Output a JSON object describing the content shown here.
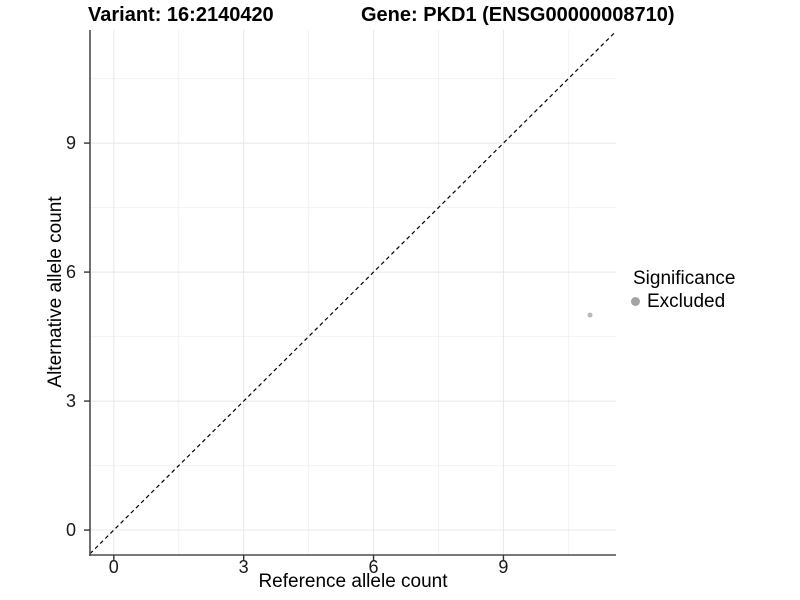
{
  "figure": {
    "titles": {
      "variant": "Variant: 16:2140420",
      "gene": "Gene: PKD1 (ENSG00000008710)"
    },
    "legend": {
      "title": "Significance",
      "items": [
        {
          "label": "Excluded",
          "color": "#a3a3a3",
          "marker": "circle-icon"
        }
      ]
    }
  },
  "chart_data": {
    "type": "scatter",
    "titles": [
      "Variant: 16:2140420",
      "Gene: PKD1 (ENSG00000008710)"
    ],
    "xlabel": "Reference allele count",
    "ylabel": "Alternative allele count",
    "xlim": [
      -0.55,
      11.6
    ],
    "ylim": [
      -0.58,
      11.63
    ],
    "x_ticks": [
      0,
      3,
      6,
      9
    ],
    "y_ticks": [
      0,
      3,
      6,
      9
    ],
    "x_minor_gridlines": [
      1.5,
      4.5,
      7.5,
      10.5
    ],
    "y_minor_gridlines": [
      1.5,
      4.5,
      7.5,
      10.5
    ],
    "grid": "major and minor gridlines on white background",
    "legend_position": "right",
    "legend_title": "Significance",
    "series": [
      {
        "name": "Excluded",
        "color": "#b9b9b9",
        "marker": "circle",
        "points": [
          {
            "x": 11,
            "y": 5
          }
        ]
      }
    ],
    "reference_line": {
      "type": "identity",
      "equation": "y = x",
      "style": "dashed",
      "color": "#000000"
    }
  },
  "style": {
    "background": "#ffffff",
    "axis_line_color": "#4d4d4d",
    "tick_mark_color": "#333333",
    "major_grid_color": "#e8e8e8",
    "minor_grid_color": "#f2f2f2",
    "tick_label_color": "#1a1a1a",
    "title_color": "#000000"
  }
}
